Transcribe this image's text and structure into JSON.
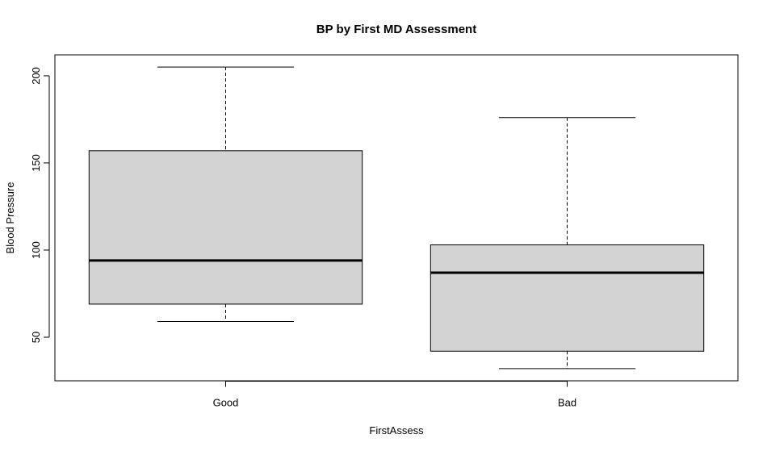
{
  "chart_data": {
    "type": "boxplot",
    "title": "BP by First MD Assessment",
    "xlabel": "FirstAssess",
    "ylabel": "Blood Pressure",
    "categories": [
      "Good",
      "Bad"
    ],
    "boxes": [
      {
        "category": "Good",
        "min": 59,
        "q1": 69,
        "median": 94,
        "q3": 157,
        "max": 205
      },
      {
        "category": "Bad",
        "min": 32,
        "q1": 42,
        "median": 87,
        "q3": 103,
        "max": 176
      }
    ],
    "ylim": [
      25,
      212
    ],
    "yticks": [
      50,
      100,
      150,
      200
    ],
    "box_fill": "#d3d3d3",
    "grid": false
  }
}
